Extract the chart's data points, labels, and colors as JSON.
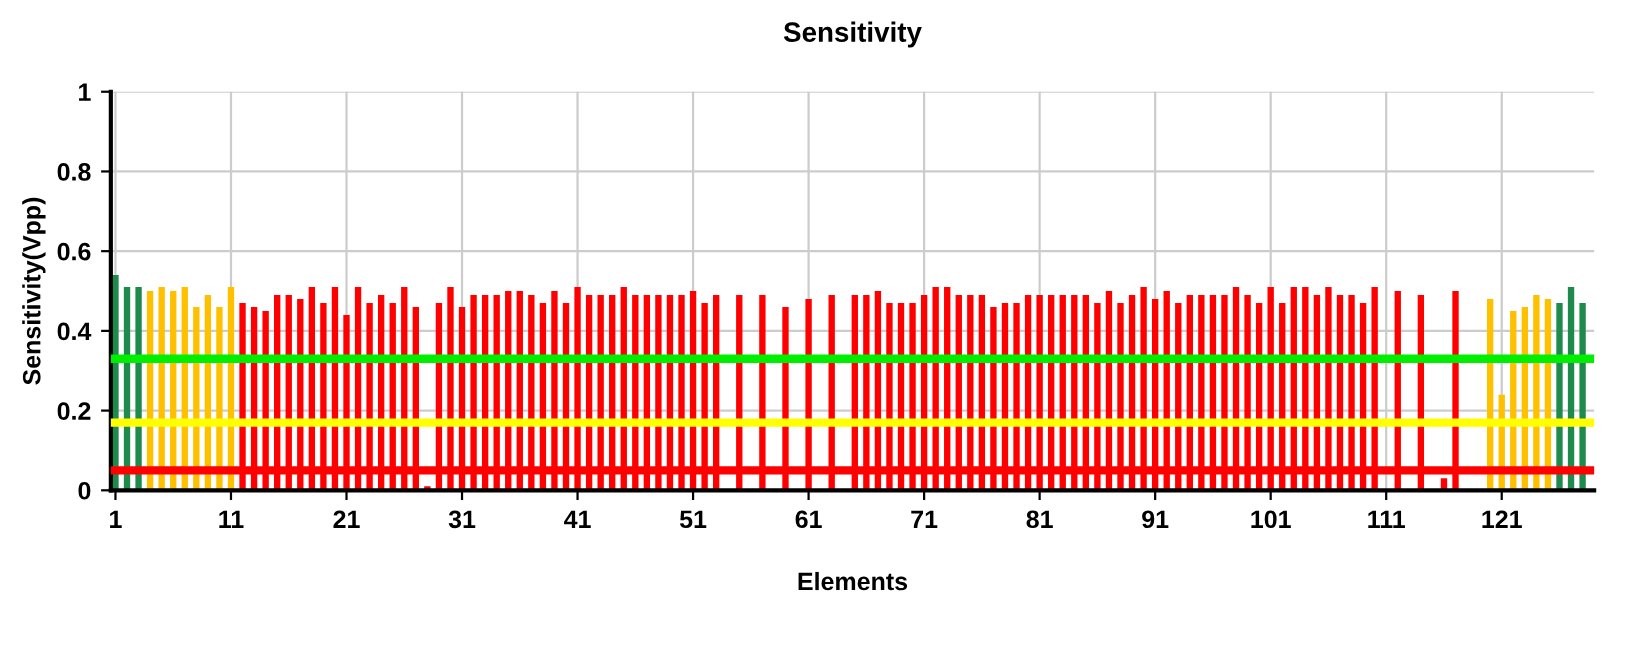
{
  "chart_data": {
    "type": "bar",
    "title": "Sensitivity",
    "xlabel": "Elements",
    "ylabel": "Sensitivity(Vpp)",
    "x": [
      1,
      2,
      3,
      4,
      5,
      6,
      7,
      8,
      9,
      10,
      11,
      12,
      13,
      14,
      15,
      16,
      17,
      18,
      19,
      20,
      21,
      22,
      23,
      24,
      25,
      26,
      27,
      28,
      29,
      30,
      31,
      32,
      33,
      34,
      35,
      36,
      37,
      38,
      39,
      40,
      41,
      42,
      43,
      44,
      45,
      46,
      47,
      48,
      49,
      50,
      51,
      52,
      53,
      54,
      55,
      56,
      57,
      58,
      59,
      60,
      61,
      62,
      63,
      64,
      65,
      66,
      67,
      68,
      69,
      70,
      71,
      72,
      73,
      74,
      75,
      76,
      77,
      78,
      79,
      80,
      81,
      82,
      83,
      84,
      85,
      86,
      87,
      88,
      89,
      90,
      91,
      92,
      93,
      94,
      95,
      96,
      97,
      98,
      99,
      100,
      101,
      102,
      103,
      104,
      105,
      106,
      107,
      108,
      109,
      110,
      111,
      112,
      113,
      114,
      115,
      116,
      117,
      118,
      119,
      120,
      121,
      122,
      123,
      124,
      125,
      126,
      127,
      128
    ],
    "values": [
      0.54,
      0.51,
      0.51,
      0.5,
      0.51,
      0.5,
      0.51,
      0.46,
      0.49,
      0.46,
      0.51,
      0.47,
      0.46,
      0.45,
      0.49,
      0.49,
      0.48,
      0.51,
      0.47,
      0.51,
      0.44,
      0.51,
      0.47,
      0.49,
      0.47,
      0.51,
      0.46,
      0.01,
      0.47,
      0.51,
      0.46,
      0.49,
      0.49,
      0.49,
      0.5,
      0.5,
      0.49,
      0.47,
      0.5,
      0.47,
      0.51,
      0.49,
      0.49,
      0.49,
      0.51,
      0.49,
      0.49,
      0.49,
      0.49,
      0.49,
      0.5,
      0.47,
      0.49,
      null,
      0.49,
      null,
      0.49,
      null,
      0.46,
      null,
      0.48,
      null,
      0.49,
      null,
      0.49,
      0.49,
      0.5,
      0.47,
      0.47,
      0.47,
      0.49,
      0.51,
      0.51,
      0.49,
      0.49,
      0.49,
      0.46,
      0.47,
      0.47,
      0.49,
      0.49,
      0.49,
      0.49,
      0.49,
      0.49,
      0.47,
      0.5,
      0.47,
      0.49,
      0.51,
      0.48,
      0.5,
      0.47,
      0.49,
      0.49,
      0.49,
      0.49,
      0.51,
      0.49,
      0.47,
      0.51,
      0.47,
      0.51,
      0.51,
      0.49,
      0.51,
      0.49,
      0.49,
      0.47,
      0.51,
      null,
      0.5,
      null,
      0.49,
      null,
      0.03,
      0.5,
      null,
      null,
      0.48,
      0.24,
      0.45,
      0.46,
      0.49,
      0.48,
      0.47,
      0.51,
      0.47
    ],
    "colors": [
      "#1e8a4c",
      "#1e8a4c",
      "#1e8a4c",
      "#ffc000",
      "#ffc000",
      "#ffc000",
      "#ffc000",
      "#ffc000",
      "#ffc000",
      "#ffc000",
      "#ffc000",
      "#ff0000",
      "#ff0000",
      "#ff0000",
      "#ff0000",
      "#ff0000",
      "#ff0000",
      "#ff0000",
      "#ff0000",
      "#ff0000",
      "#ff0000",
      "#ff0000",
      "#ff0000",
      "#ff0000",
      "#ff0000",
      "#ff0000",
      "#ff0000",
      "#ff0000",
      "#ff0000",
      "#ff0000",
      "#ff0000",
      "#ff0000",
      "#ff0000",
      "#ff0000",
      "#ff0000",
      "#ff0000",
      "#ff0000",
      "#ff0000",
      "#ff0000",
      "#ff0000",
      "#ff0000",
      "#ff0000",
      "#ff0000",
      "#ff0000",
      "#ff0000",
      "#ff0000",
      "#ff0000",
      "#ff0000",
      "#ff0000",
      "#ff0000",
      "#ff0000",
      "#ff0000",
      "#ff0000",
      "#ff0000",
      "#ff0000",
      "#ff0000",
      "#ff0000",
      "#ff0000",
      "#ff0000",
      "#ff0000",
      "#ff0000",
      "#ff0000",
      "#ff0000",
      "#ff0000",
      "#ff0000",
      "#ff0000",
      "#ff0000",
      "#ff0000",
      "#ff0000",
      "#ff0000",
      "#ff0000",
      "#ff0000",
      "#ff0000",
      "#ff0000",
      "#ff0000",
      "#ff0000",
      "#ff0000",
      "#ff0000",
      "#ff0000",
      "#ff0000",
      "#ff0000",
      "#ff0000",
      "#ff0000",
      "#ff0000",
      "#ff0000",
      "#ff0000",
      "#ff0000",
      "#ff0000",
      "#ff0000",
      "#ff0000",
      "#ff0000",
      "#ff0000",
      "#ff0000",
      "#ff0000",
      "#ff0000",
      "#ff0000",
      "#ff0000",
      "#ff0000",
      "#ff0000",
      "#ff0000",
      "#ff0000",
      "#ff0000",
      "#ff0000",
      "#ff0000",
      "#ff0000",
      "#ff0000",
      "#ff0000",
      "#ff0000",
      "#ff0000",
      "#ff0000",
      "#ff0000",
      "#ff0000",
      "#ff0000",
      "#ff0000",
      "#ff0000",
      "#ff0000",
      "#ff0000",
      "#ff0000",
      "#ff0000",
      "#ffc000",
      "#ffc000",
      "#ffc000",
      "#ffc000",
      "#ffc000",
      "#ffc000",
      "#1e8a4c",
      "#1e8a4c",
      "#1e8a4c"
    ],
    "xlim": [
      0.6,
      129
    ],
    "xticks": [
      1,
      11,
      21,
      31,
      41,
      51,
      61,
      71,
      81,
      91,
      101,
      111,
      121
    ],
    "ylim": [
      0,
      1
    ],
    "yticks": [
      0,
      0.2,
      0.4,
      0.6,
      0.8,
      1
    ],
    "grid": true,
    "legend": false,
    "ref_lines": [
      {
        "axis": "y",
        "value": 0.33,
        "color": "#00ee00"
      },
      {
        "axis": "y",
        "value": 0.17,
        "color": "#ffff00"
      },
      {
        "axis": "y",
        "value": 0.05,
        "color": "#ff0000"
      }
    ]
  }
}
